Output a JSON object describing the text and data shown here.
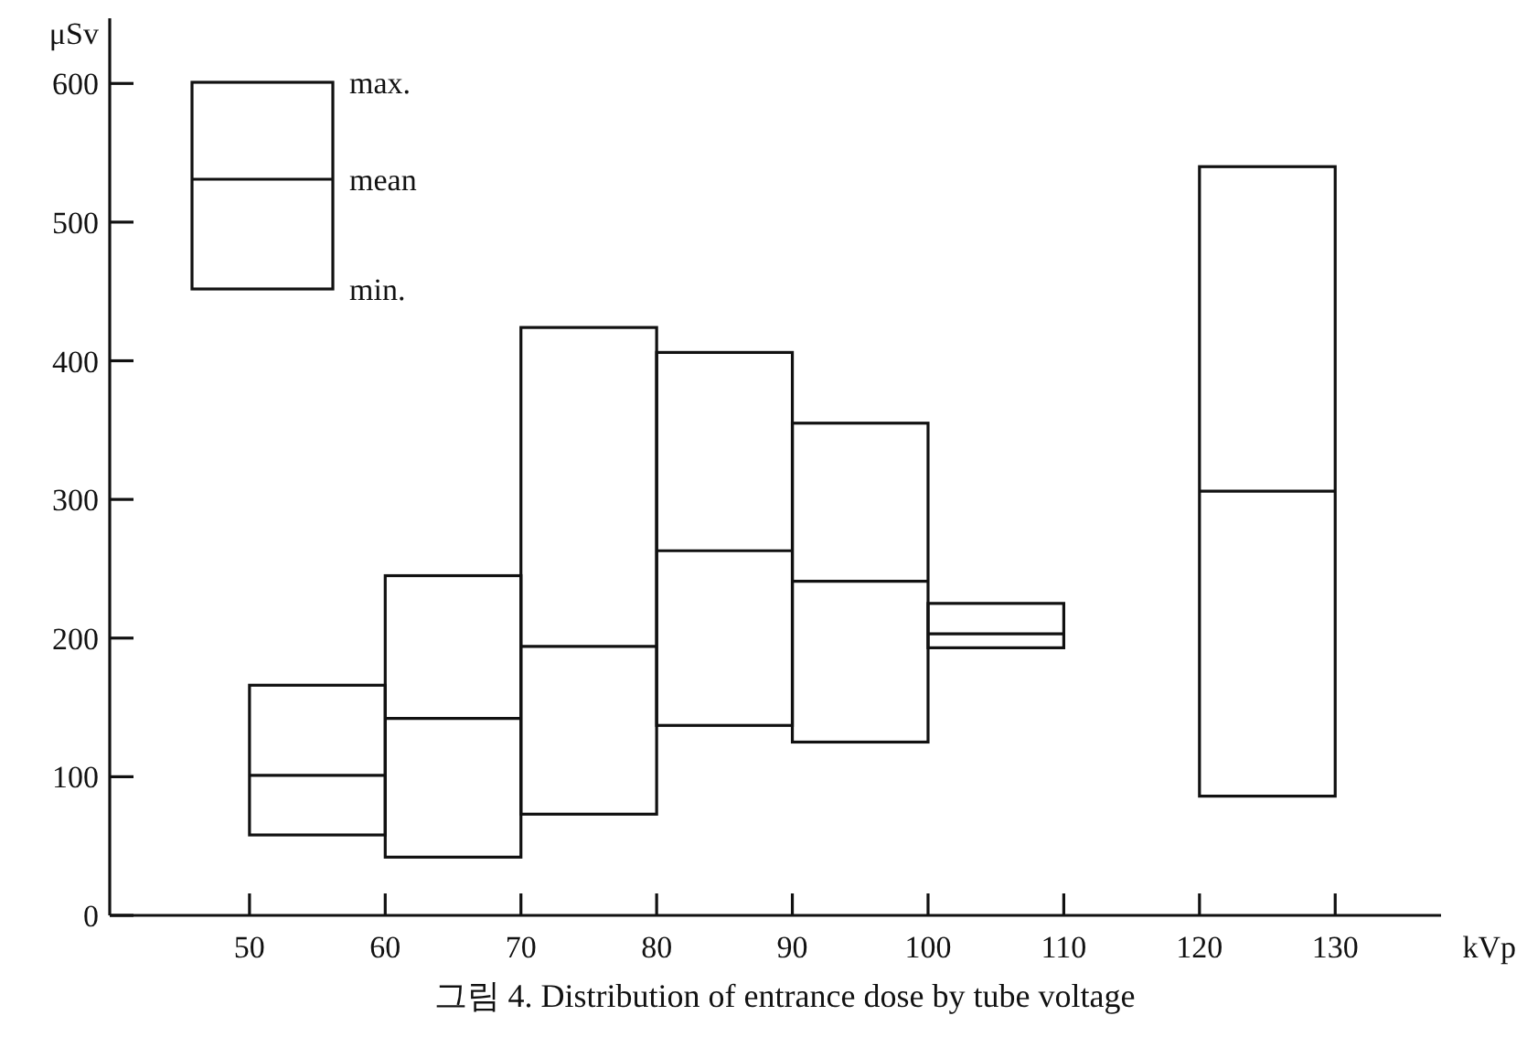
{
  "chart_data": {
    "type": "box",
    "title": "그림 4. Distribution of entrance dose by tube voltage",
    "xlabel": "kVp",
    "ylabel": "μSv",
    "x": [
      55,
      65,
      75,
      85,
      95,
      105,
      125
    ],
    "boxes": [
      {
        "low": 58,
        "q1": 58,
        "median": 101,
        "q3": 166,
        "high": 166
      },
      {
        "low": 42,
        "q1": 42,
        "median": 142,
        "q3": 245,
        "high": 245
      },
      {
        "low": 73,
        "q1": 73,
        "median": 194,
        "q3": 424,
        "high": 424
      },
      {
        "low": 137,
        "q1": 137,
        "median": 263,
        "q3": 406,
        "high": 406
      },
      {
        "low": 125,
        "q1": 125,
        "median": 241,
        "q3": 355,
        "high": 355
      },
      {
        "low": 193,
        "q1": 193,
        "median": 203,
        "q3": 225,
        "high": 225
      },
      {
        "low": 86,
        "q1": 86,
        "median": 306,
        "q3": 540,
        "high": 540
      }
    ],
    "xlim": [
      39.7,
      137.8
    ],
    "xticks": [
      50,
      60,
      70,
      80,
      90,
      100,
      110,
      120,
      130
    ],
    "ylim": [
      0,
      647
    ],
    "yticks": [
      0,
      100,
      200,
      300,
      400,
      500,
      600
    ],
    "annotations": [
      "max.",
      "mean",
      "min."
    ],
    "grid": false
  }
}
